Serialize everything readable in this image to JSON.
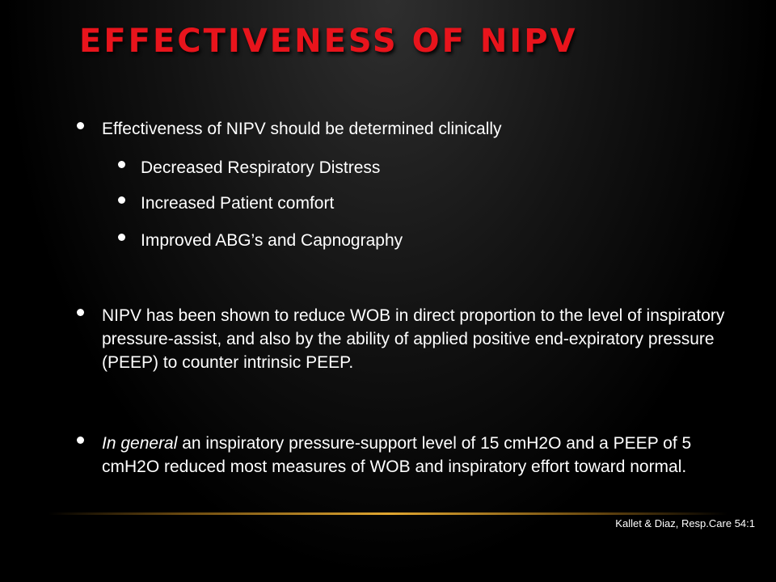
{
  "slide": {
    "title": "EFFECTIVENESS OF NIPV",
    "bullets": [
      {
        "text": "Effectiveness of NIPV should be determined clinically",
        "sub_items": [
          "Decreased Respiratory Distress",
          "Increased Patient comfort",
          "Improved ABG’s and Capnography"
        ]
      },
      {
        "text": "NIPV has been shown to reduce WOB in direct proportion to the level of inspiratory pressure-assist, and also by the ability of applied positive end-expiratory pressure (PEEP) to counter intrinsic PEEP."
      },
      {
        "italic_lead": "In general",
        "text": " an inspiratory pressure-support level of 15 cmH2O and a PEEP of 5 cmH2O reduced most measures of WOB and inspiratory effort toward normal."
      }
    ],
    "citation": "Kallet & Diaz, Resp.Care 54:1"
  },
  "colors": {
    "title": "#e8141c",
    "text": "#ffffff",
    "divider": "#e0a630",
    "background": "#000000"
  }
}
